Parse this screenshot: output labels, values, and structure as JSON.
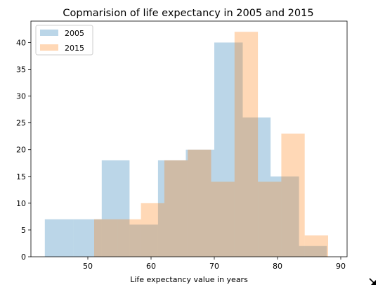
{
  "chart_data": {
    "type": "histogram",
    "title": "Copmarision of life expectancy in 2005 and 2015",
    "xlabel": "Life expectancy value in years",
    "ylabel": "",
    "xlim": [
      41,
      91
    ],
    "ylim": [
      0,
      44
    ],
    "xticks": [
      50,
      60,
      70,
      80,
      90
    ],
    "yticks": [
      0,
      5,
      10,
      15,
      20,
      25,
      30,
      35,
      40
    ],
    "grid": false,
    "legend_position": "top-left",
    "series": [
      {
        "name": "2005",
        "color": "#1f77b4",
        "alpha": 0.3,
        "bins": [
          {
            "x0": 43.2,
            "x1": 47.7,
            "count": 7
          },
          {
            "x0": 47.7,
            "x1": 52.2,
            "count": 7
          },
          {
            "x0": 52.2,
            "x1": 56.6,
            "count": 18
          },
          {
            "x0": 56.6,
            "x1": 61.1,
            "count": 6
          },
          {
            "x0": 61.1,
            "x1": 65.5,
            "count": 18
          },
          {
            "x0": 65.5,
            "x1": 70.0,
            "count": 20
          },
          {
            "x0": 70.0,
            "x1": 74.5,
            "count": 40
          },
          {
            "x0": 74.5,
            "x1": 78.9,
            "count": 26
          },
          {
            "x0": 78.9,
            "x1": 83.4,
            "count": 15
          },
          {
            "x0": 83.4,
            "x1": 87.8,
            "count": 2
          }
        ]
      },
      {
        "name": "2015",
        "color": "#ff7f0e",
        "alpha": 0.3,
        "bins": [
          {
            "x0": 51.0,
            "x1": 54.7,
            "count": 7
          },
          {
            "x0": 54.7,
            "x1": 58.4,
            "count": 7
          },
          {
            "x0": 58.4,
            "x1": 62.1,
            "count": 10
          },
          {
            "x0": 62.1,
            "x1": 65.8,
            "count": 18
          },
          {
            "x0": 65.8,
            "x1": 69.5,
            "count": 20
          },
          {
            "x0": 69.5,
            "x1": 73.2,
            "count": 14
          },
          {
            "x0": 73.2,
            "x1": 76.9,
            "count": 42
          },
          {
            "x0": 76.9,
            "x1": 80.6,
            "count": 14
          },
          {
            "x0": 80.6,
            "x1": 84.3,
            "count": 23
          },
          {
            "x0": 84.3,
            "x1": 88.0,
            "count": 4
          }
        ]
      }
    ]
  },
  "icons": {
    "resize_handle": "resize-arrow-icon"
  }
}
